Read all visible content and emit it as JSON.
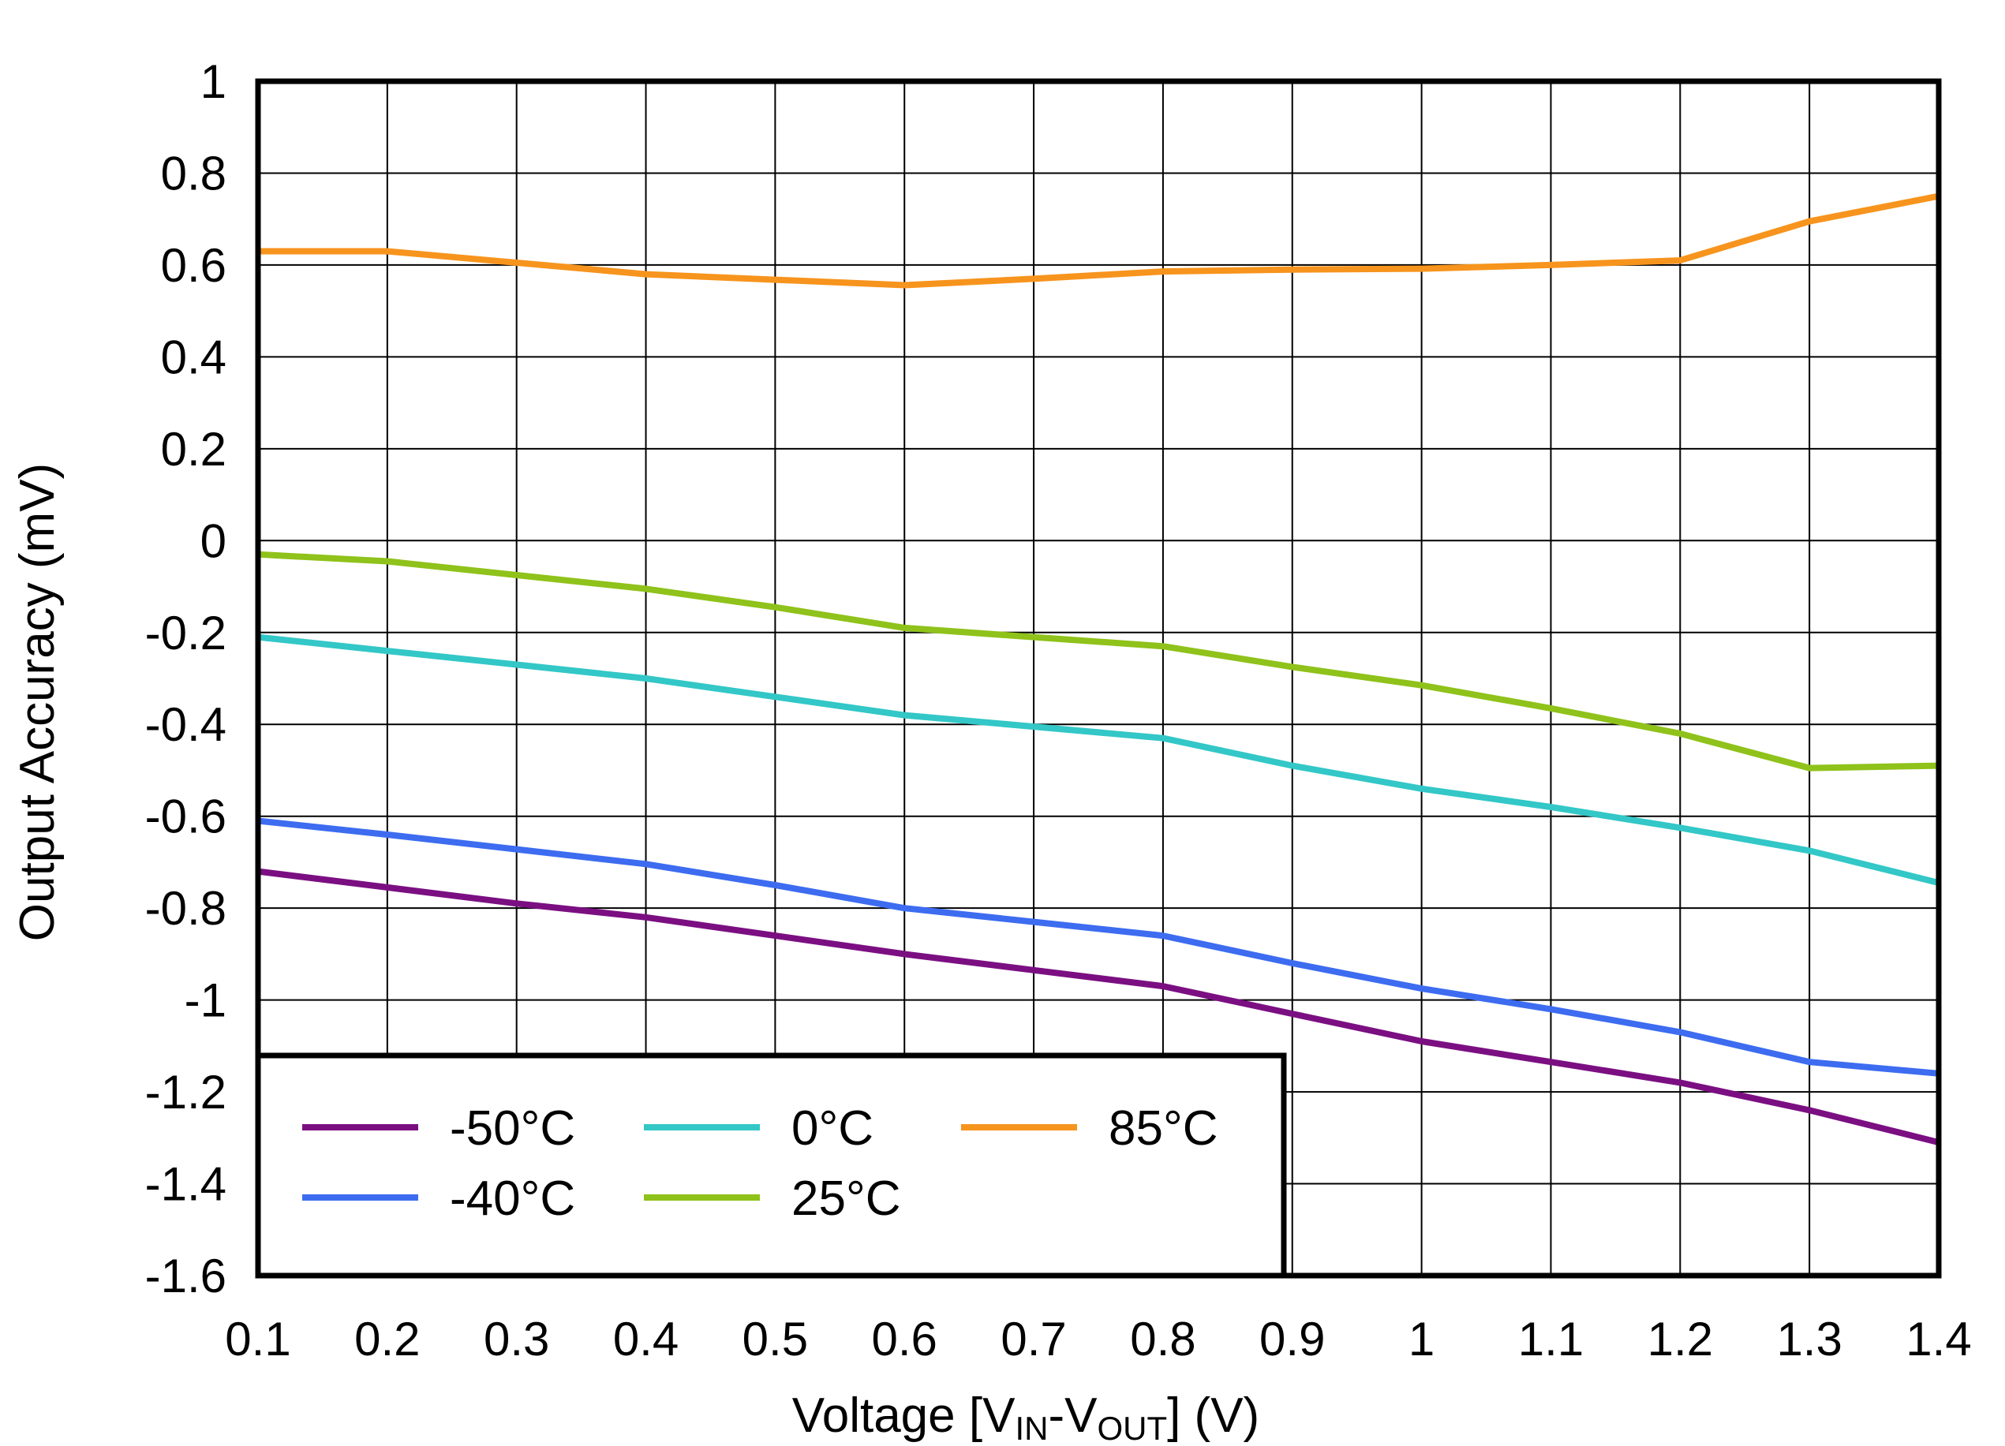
{
  "chart_data": {
    "type": "line",
    "title": "",
    "xlabel": {
      "prefix": "Voltage [V",
      "sub1": "IN",
      "mid": "-V",
      "sub2": "OUT",
      "suffix": "] (V)"
    },
    "ylabel": "Output Accuracy (mV)",
    "xlim": [
      0.1,
      1.4
    ],
    "ylim": [
      -1.6,
      1
    ],
    "grid": true,
    "xticks": [
      "0.1",
      "0.2",
      "0.3",
      "0.4",
      "0.5",
      "0.6",
      "0.7",
      "0.8",
      "0.9",
      "1",
      "1.1",
      "1.2",
      "1.3",
      "1.4"
    ],
    "yticks": [
      "1",
      "0.8",
      "0.6",
      "0.4",
      "0.2",
      "0",
      "-0.2",
      "-0.4",
      "-0.6",
      "-0.8",
      "-1",
      "-1.2",
      "-1.4",
      "-1.6"
    ],
    "x": [
      0.1,
      0.2,
      0.3,
      0.4,
      0.5,
      0.6,
      0.7,
      0.8,
      0.9,
      1.0,
      1.1,
      1.2,
      1.3,
      1.4
    ],
    "legend_position": "bottom-left",
    "series": [
      {
        "name": "-50°C",
        "color": "#7b0f82",
        "values": [
          -0.72,
          -0.755,
          -0.79,
          -0.82,
          -0.86,
          -0.9,
          -0.935,
          -0.97,
          -1.03,
          -1.09,
          -1.135,
          -1.18,
          -1.24,
          -1.31
        ]
      },
      {
        "name": "0°C",
        "color": "#33c7c7",
        "values": [
          -0.21,
          -0.24,
          -0.27,
          -0.3,
          -0.34,
          -0.38,
          -0.405,
          -0.43,
          -0.49,
          -0.54,
          -0.58,
          -0.625,
          -0.675,
          -0.745
        ]
      },
      {
        "name": "85°C",
        "color": "#f7941d",
        "values": [
          0.63,
          0.63,
          0.605,
          0.58,
          0.568,
          0.556,
          0.57,
          0.586,
          0.59,
          0.592,
          0.6,
          0.61,
          0.695,
          0.75
        ]
      },
      {
        "name": "-40°C",
        "color": "#3d6cf0",
        "values": [
          -0.61,
          -0.64,
          -0.672,
          -0.704,
          -0.75,
          -0.8,
          -0.83,
          -0.86,
          -0.92,
          -0.975,
          -1.02,
          -1.07,
          -1.135,
          -1.16
        ]
      },
      {
        "name": "25°C",
        "color": "#8fc21a",
        "values": [
          -0.03,
          -0.045,
          -0.075,
          -0.105,
          -0.145,
          -0.19,
          -0.21,
          -0.23,
          -0.275,
          -0.315,
          -0.365,
          -0.42,
          -0.495,
          -0.49
        ]
      }
    ]
  }
}
